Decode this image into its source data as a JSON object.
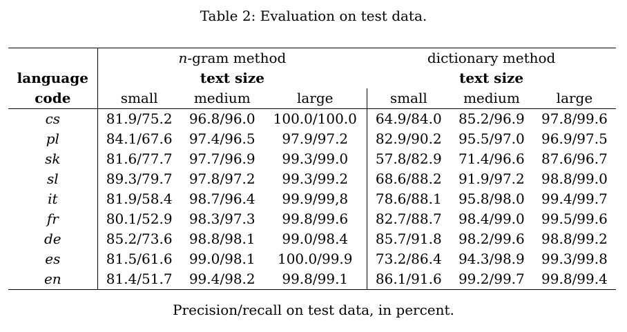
{
  "caption": "Table 2: Evaluation on test data.",
  "header": {
    "group1_italic": "n",
    "group1_rest": "-gram method",
    "group2": "dictionary method",
    "col_label_line1": "language",
    "col_label_line2": "code",
    "text_size": "text size",
    "sizes": [
      "small",
      "medium",
      "large"
    ]
  },
  "rows": [
    {
      "code": "cs",
      "ngram": [
        "81.9/75.2",
        "96.8/96.0",
        "100.0/100.0"
      ],
      "dict": [
        "64.9/84.0",
        "85.2/96.9",
        "97.8/99.6"
      ]
    },
    {
      "code": "pl",
      "ngram": [
        "84.1/67.6",
        "97.4/96.5",
        "97.9/97.2"
      ],
      "dict": [
        "82.9/90.2",
        "95.5/97.0",
        "96.9/97.5"
      ]
    },
    {
      "code": "sk",
      "ngram": [
        "81.6/77.7",
        "97.7/96.9",
        "99.3/99.0"
      ],
      "dict": [
        "57.8/82.9",
        "71.4/96.6",
        "87.6/96.7"
      ]
    },
    {
      "code": "sl",
      "ngram": [
        "89.3/79.7",
        "97.8/97.2",
        "99.3/99.2"
      ],
      "dict": [
        "68.6/88.2",
        "91.9/97.2",
        "98.8/99.0"
      ]
    },
    {
      "code": "it",
      "ngram": [
        "81.9/58.4",
        "98.7/96.4",
        "99.9/99,8"
      ],
      "dict": [
        "78.6/88.1",
        "95.8/98.0",
        "99.4/99.7"
      ]
    },
    {
      "code": "fr",
      "ngram": [
        "80.1/52.9",
        "98.3/97.3",
        "99.8/99.6"
      ],
      "dict": [
        "82.7/88.7",
        "98.4/99.0",
        "99.5/99.6"
      ]
    },
    {
      "code": "de",
      "ngram": [
        "85.2/73.6",
        "98.8/98.1",
        "99.0/98.4"
      ],
      "dict": [
        "85.7/91.8",
        "98.2/99.6",
        "98.8/99.2"
      ]
    },
    {
      "code": "es",
      "ngram": [
        "81.5/61.6",
        "99.0/98.1",
        "100.0/99.9"
      ],
      "dict": [
        "73.2/86.4",
        "94.3/98.9",
        "99.3/99.8"
      ]
    },
    {
      "code": "en",
      "ngram": [
        "81.4/51.7",
        "99.4/98.2",
        "99.8/99.1"
      ],
      "dict": [
        "86.1/91.6",
        "99.2/99.7",
        "99.8/99.4"
      ]
    }
  ],
  "footnote": "Precision/recall on test data, in percent."
}
